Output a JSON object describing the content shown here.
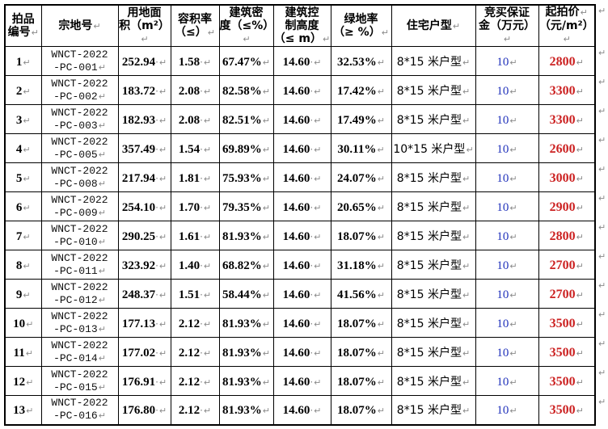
{
  "document": {
    "type": "word-table-screenshot",
    "formatting_marks_visible": true,
    "return_glyph": "↵",
    "space_dot_glyph": "·"
  },
  "colors": {
    "price_red": "#cc2222",
    "deposit_blue": "#2233bb",
    "mark_gray": "#8a8a8a",
    "border_black": "#000000",
    "background": "#ffffff"
  },
  "table": {
    "headers": [
      {
        "key": "lot-no",
        "lines": [
          "拍品",
          "编号↵"
        ]
      },
      {
        "key": "parcel-code",
        "lines": [
          "宗地号↵"
        ]
      },
      {
        "key": "land-area",
        "lines": [
          "用地面",
          "积（m²）↵"
        ]
      },
      {
        "key": "plot-ratio",
        "lines": [
          "容积率",
          "（≤）↵"
        ]
      },
      {
        "key": "building-density",
        "lines": [
          "建筑密",
          "度（≤%）↵"
        ]
      },
      {
        "key": "height-limit",
        "lines": [
          "建筑控",
          "制高度",
          "（≤ m）↵"
        ]
      },
      {
        "key": "green-ratio",
        "lines": [
          "绿地率",
          "（≥ %）↵"
        ]
      },
      {
        "key": "unit-type",
        "lines": [
          "住宅户型↵"
        ]
      },
      {
        "key": "deposit",
        "lines": [
          "竞买保证",
          "金（万元）↵"
        ]
      },
      {
        "key": "start-price",
        "lines": [
          "起拍价↵",
          "（元/m²）↵"
        ]
      }
    ],
    "column_types": [
      "no",
      "code",
      "numdot",
      "numdot",
      "pct",
      "numdot",
      "pct",
      "text",
      "deposit",
      "price"
    ],
    "rows": [
      [
        "1",
        [
          "WNCT-2022",
          "-PC-001"
        ],
        "252.94",
        "1.58",
        "67.47%",
        "14.60",
        "32.53%",
        "8*15 米户型",
        "10",
        "2800"
      ],
      [
        "2",
        [
          "WNCT-2022",
          "-PC-002"
        ],
        "183.72",
        "2.08",
        "82.58%",
        "14.60",
        "17.42%",
        "8*15 米户型",
        "10",
        "3300"
      ],
      [
        "3",
        [
          "WNCT-2022",
          "-PC-003"
        ],
        "182.93",
        "2.08",
        "82.51%",
        "14.60",
        "17.49%",
        "8*15 米户型",
        "10",
        "3300"
      ],
      [
        "4",
        [
          "WNCT-2022",
          "-PC-005"
        ],
        "357.49",
        "1.54",
        "69.89%",
        "14.60",
        "30.11%",
        "10*15 米户型",
        "10",
        "2600"
      ],
      [
        "5",
        [
          "WNCT-2022",
          "-PC-008"
        ],
        "217.94",
        "1.81",
        "75.93%",
        "14.60",
        "24.07%",
        "8*15 米户型",
        "10",
        "3000"
      ],
      [
        "6",
        [
          "WNCT-2022",
          "-PC-009"
        ],
        "254.10",
        "1.70",
        "79.35%",
        "14.60",
        "20.65%",
        "8*15 米户型",
        "10",
        "2900"
      ],
      [
        "7",
        [
          "WNCT-2022",
          "-PC-010"
        ],
        "290.25",
        "1.61",
        "81.93%",
        "14.60",
        "18.07%",
        "8*15 米户型",
        "10",
        "2800"
      ],
      [
        "8",
        [
          "WNCT-2022",
          "-PC-011"
        ],
        "323.92",
        "1.40",
        "68.82%",
        "14.60",
        "31.18%",
        "8*15 米户型",
        "10",
        "2700"
      ],
      [
        "9",
        [
          "WNCT-2022",
          "-PC-012"
        ],
        "248.37",
        "1.51",
        "58.44%",
        "14.60",
        "41.56%",
        "8*15 米户型",
        "10",
        "2700"
      ],
      [
        "10",
        [
          "WNCT-2022",
          "-PC-013"
        ],
        "177.13",
        "2.12",
        "81.93%",
        "14.60",
        "18.07%",
        "8*15 米户型",
        "10",
        "3500"
      ],
      [
        "11",
        [
          "WNCT-2022",
          "-PC-014"
        ],
        "177.02",
        "2.12",
        "81.93%",
        "14.60",
        "18.07%",
        "8*15 米户型",
        "10",
        "3500"
      ],
      [
        "12",
        [
          "WNCT-2022",
          "-PC-015"
        ],
        "176.91",
        "2.12",
        "81.93%",
        "14.60",
        "18.07%",
        "8*15 米户型",
        "10",
        "3500"
      ],
      [
        "13",
        [
          "WNCT-2022",
          "-PC-016"
        ],
        "176.80",
        "2.12",
        "81.93%",
        "14.60",
        "18.07%",
        "8*15 米户型",
        "10",
        "3500"
      ]
    ]
  }
}
